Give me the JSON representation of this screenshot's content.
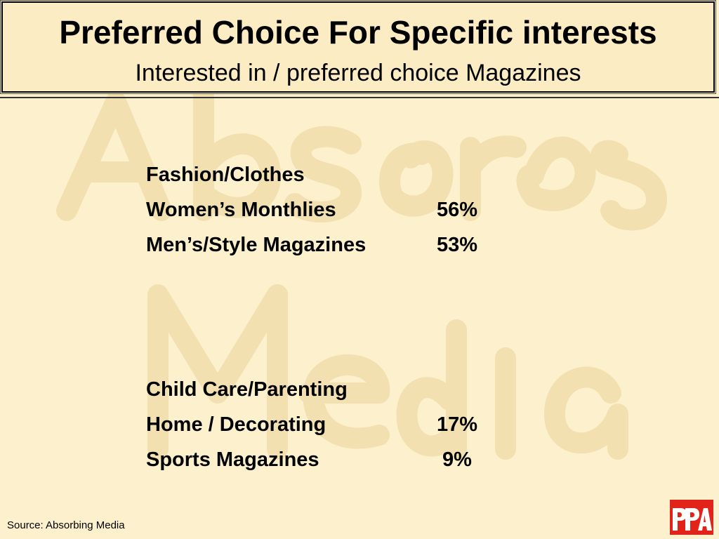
{
  "header": {
    "title": "Preferred Choice For Specific interests",
    "subtitle": "Interested in / preferred choice Magazines"
  },
  "items": [
    {
      "label": "Fashion/Clothes",
      "value": ""
    },
    {
      "label": "Women’s Monthlies",
      "value": "56%"
    },
    {
      "label": "Men’s/Style Magazines",
      "value": "53%"
    },
    {
      "label": "Child Care/Parenting",
      "value": ""
    },
    {
      "label": "Home / Decorating",
      "value": "17%"
    },
    {
      "label": "Sports Magazines",
      "value": "9%"
    }
  ],
  "footer": {
    "source": "Source: Absorbing Media"
  },
  "watermark": {
    "text_line1": "Absorbing",
    "text_line2": "Media",
    "color": "#f1dfb0"
  },
  "logo": {
    "text": "PPA",
    "color": "#e2231a"
  },
  "colors": {
    "background": "#fdf0cc",
    "title_box": "#fcecc4"
  }
}
